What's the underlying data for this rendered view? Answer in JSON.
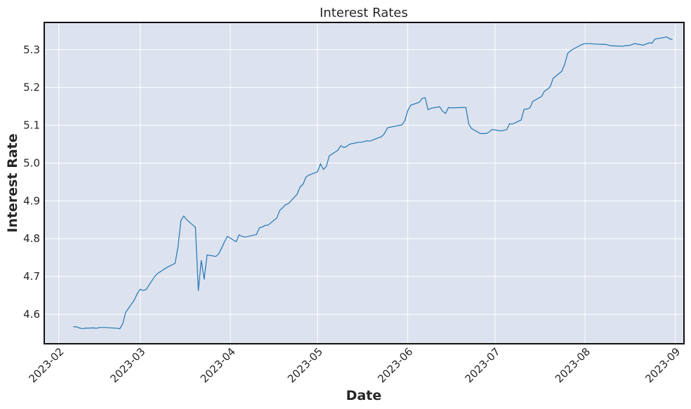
{
  "chart_data": {
    "type": "line",
    "title": "Interest Rates",
    "xlabel": "Date",
    "ylabel": "Interest Rate",
    "grid": true,
    "background_color": "#dde2ef",
    "line_color": "#1f77b4",
    "xlim": [
      "2023-01-27",
      "2023-09-04"
    ],
    "ylim": [
      4.522,
      5.372
    ],
    "x_ticks": [
      {
        "date": "2023-02-01",
        "label": "2023-02"
      },
      {
        "date": "2023-03-01",
        "label": "2023-03"
      },
      {
        "date": "2023-04-01",
        "label": "2023-04"
      },
      {
        "date": "2023-05-01",
        "label": "2023-05"
      },
      {
        "date": "2023-06-01",
        "label": "2023-06"
      },
      {
        "date": "2023-07-01",
        "label": "2023-07"
      },
      {
        "date": "2023-08-01",
        "label": "2023-08"
      },
      {
        "date": "2023-09-01",
        "label": "2023-09"
      }
    ],
    "y_ticks": [
      {
        "value": 4.6,
        "label": "4.6"
      },
      {
        "value": 4.7,
        "label": "4.7"
      },
      {
        "value": 4.8,
        "label": "4.8"
      },
      {
        "value": 4.9,
        "label": "4.9"
      },
      {
        "value": 5.0,
        "label": "5.0"
      },
      {
        "value": 5.1,
        "label": "5.1"
      },
      {
        "value": 5.2,
        "label": "5.2"
      },
      {
        "value": 5.3,
        "label": "5.3"
      }
    ],
    "series": [
      {
        "x": [
          "2023-02-06",
          "2023-02-07",
          "2023-02-08",
          "2023-02-09",
          "2023-02-10",
          "2023-02-13",
          "2023-02-14",
          "2023-02-15",
          "2023-02-16",
          "2023-02-17",
          "2023-02-21",
          "2023-02-22",
          "2023-02-23",
          "2023-02-24",
          "2023-02-27",
          "2023-02-28",
          "2023-03-01",
          "2023-03-02",
          "2023-03-03",
          "2023-03-06",
          "2023-03-07",
          "2023-03-08",
          "2023-03-09",
          "2023-03-10",
          "2023-03-13",
          "2023-03-14",
          "2023-03-15",
          "2023-03-16",
          "2023-03-17",
          "2023-03-20",
          "2023-03-21",
          "2023-03-22",
          "2023-03-23",
          "2023-03-24",
          "2023-03-27",
          "2023-03-28",
          "2023-03-29",
          "2023-03-30",
          "2023-03-31",
          "2023-04-03",
          "2023-04-04",
          "2023-04-05",
          "2023-04-06",
          "2023-04-10",
          "2023-04-11",
          "2023-04-12",
          "2023-04-13",
          "2023-04-14",
          "2023-04-17",
          "2023-04-18",
          "2023-04-19",
          "2023-04-20",
          "2023-04-21",
          "2023-04-24",
          "2023-04-25",
          "2023-04-26",
          "2023-04-27",
          "2023-04-28",
          "2023-05-01",
          "2023-05-02",
          "2023-05-03",
          "2023-05-04",
          "2023-05-05",
          "2023-05-08",
          "2023-05-09",
          "2023-05-10",
          "2023-05-11",
          "2023-05-12",
          "2023-05-15",
          "2023-05-16",
          "2023-05-17",
          "2023-05-18",
          "2023-05-19",
          "2023-05-22",
          "2023-05-23",
          "2023-05-24",
          "2023-05-25",
          "2023-05-26",
          "2023-05-30",
          "2023-05-31",
          "2023-06-01",
          "2023-06-02",
          "2023-06-05",
          "2023-06-06",
          "2023-06-07",
          "2023-06-08",
          "2023-06-09",
          "2023-06-12",
          "2023-06-13",
          "2023-06-14",
          "2023-06-15",
          "2023-06-16",
          "2023-06-20",
          "2023-06-21",
          "2023-06-22",
          "2023-06-23",
          "2023-06-26",
          "2023-06-27",
          "2023-06-28",
          "2023-06-29",
          "2023-06-30",
          "2023-07-03",
          "2023-07-05",
          "2023-07-06",
          "2023-07-07",
          "2023-07-10",
          "2023-07-11",
          "2023-07-12",
          "2023-07-13",
          "2023-07-14",
          "2023-07-17",
          "2023-07-18",
          "2023-07-19",
          "2023-07-20",
          "2023-07-21",
          "2023-07-24",
          "2023-07-25",
          "2023-07-26",
          "2023-07-27",
          "2023-07-28",
          "2023-07-31",
          "2023-08-01",
          "2023-08-02",
          "2023-08-03",
          "2023-08-04",
          "2023-08-07",
          "2023-08-08",
          "2023-08-09",
          "2023-08-10",
          "2023-08-11",
          "2023-08-14",
          "2023-08-15",
          "2023-08-16",
          "2023-08-17",
          "2023-08-18",
          "2023-08-21",
          "2023-08-22",
          "2023-08-23",
          "2023-08-24",
          "2023-08-25",
          "2023-08-28",
          "2023-08-29",
          "2023-08-30",
          "2023-08-31"
        ],
        "y": [
          4.567,
          4.567,
          4.564,
          4.562,
          4.563,
          4.564,
          4.563,
          4.565,
          4.565,
          4.565,
          4.563,
          4.562,
          4.575,
          4.605,
          4.638,
          4.655,
          4.666,
          4.663,
          4.665,
          4.7,
          4.708,
          4.713,
          4.718,
          4.723,
          4.735,
          4.778,
          4.848,
          4.86,
          4.85,
          4.83,
          4.662,
          4.743,
          4.692,
          4.757,
          4.753,
          4.76,
          4.775,
          4.792,
          4.806,
          4.792,
          4.81,
          4.806,
          4.804,
          4.811,
          4.829,
          4.831,
          4.835,
          4.836,
          4.855,
          4.875,
          4.882,
          4.89,
          4.893,
          4.918,
          4.937,
          4.944,
          4.963,
          4.968,
          4.977,
          4.998,
          4.983,
          4.991,
          5.019,
          5.034,
          5.046,
          5.041,
          5.044,
          5.05,
          5.055,
          5.055,
          5.057,
          5.059,
          5.058,
          5.067,
          5.07,
          5.078,
          5.093,
          5.095,
          5.101,
          5.112,
          5.138,
          5.153,
          5.161,
          5.171,
          5.173,
          5.141,
          5.145,
          5.149,
          5.137,
          5.131,
          5.147,
          5.146,
          5.147,
          5.147,
          5.103,
          5.091,
          5.078,
          5.078,
          5.078,
          5.082,
          5.089,
          5.085,
          5.088,
          5.104,
          5.103,
          5.114,
          5.142,
          5.143,
          5.146,
          5.163,
          5.176,
          5.19,
          5.195,
          5.202,
          5.224,
          5.243,
          5.262,
          5.29,
          5.297,
          5.302,
          5.314,
          5.316,
          5.316,
          5.316,
          5.315,
          5.314,
          5.314,
          5.312,
          5.31,
          5.31,
          5.309,
          5.311,
          5.311,
          5.313,
          5.316,
          5.312,
          5.315,
          5.318,
          5.317,
          5.328,
          5.332,
          5.334,
          5.329,
          5.327
        ]
      }
    ]
  }
}
